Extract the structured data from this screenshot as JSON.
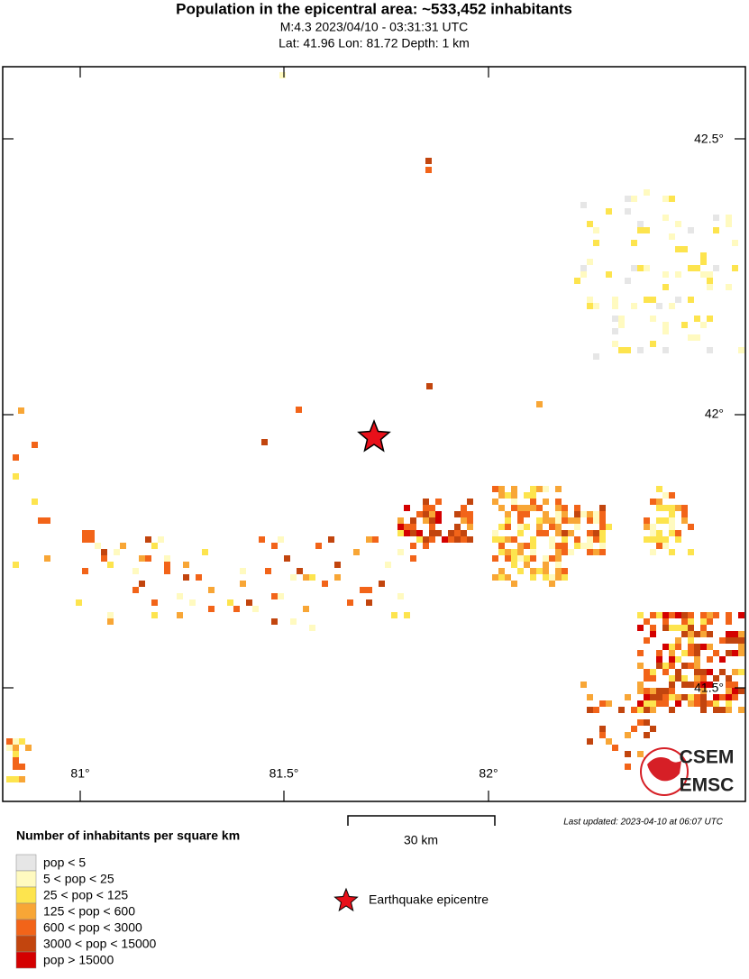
{
  "header": {
    "title": "Population in the epicentral area: ~533,452 inhabitants",
    "line1": "M:4.3 2023/04/10 - 03:31:31 UTC",
    "line2": "Lat: 41.96 Lon: 81.72 Depth: 1 km"
  },
  "map": {
    "lon_ticks": [
      "81°",
      "81.5°",
      "82°"
    ],
    "lat_ticks": [
      "42.5°",
      "42°",
      "41.5°"
    ],
    "logo": [
      "CSEM",
      "EMSC"
    ]
  },
  "legend": {
    "title": "Number of inhabitants per square km",
    "items": [
      {
        "label": "pop < 5",
        "color": "#e6e6e6"
      },
      {
        "label": "5 < pop < 25",
        "color": "#fffac0"
      },
      {
        "label": "25 < pop < 125",
        "color": "#fde44e"
      },
      {
        "label": "125 < pop < 600",
        "color": "#f8a636"
      },
      {
        "label": "600 < pop < 3000",
        "color": "#f26419"
      },
      {
        "label": "3000 < pop < 15000",
        "color": "#c2450e"
      },
      {
        "label": "pop > 15000",
        "color": "#d40000"
      }
    ]
  },
  "scale": "30 km",
  "epicentre": "Earthquake epicentre",
  "updated": "Last updated: 2023-04-10 at 06:07 UTC"
}
